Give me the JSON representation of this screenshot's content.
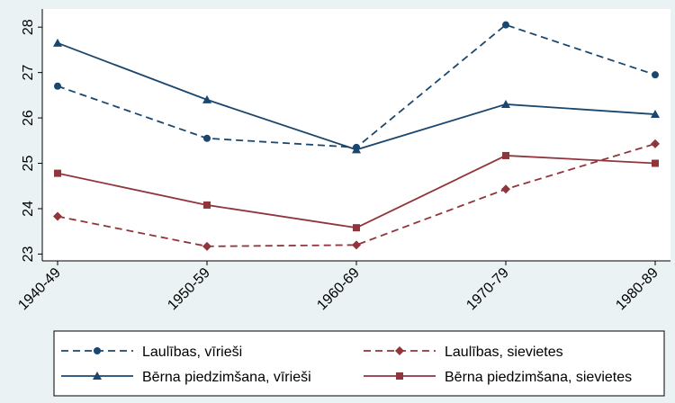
{
  "chart_data": {
    "type": "line",
    "categories": [
      "1940-49",
      "1950-59",
      "1960-69",
      "1970-79",
      "1980-89"
    ],
    "series": [
      {
        "name": "Laulības, vīrieši",
        "color": "#1a476f",
        "dash": true,
        "marker": "circle",
        "values": [
          26.7,
          25.55,
          25.35,
          28.05,
          26.95
        ]
      },
      {
        "name": "Laulības, sievietes",
        "color": "#90353b",
        "dash": true,
        "marker": "diamond",
        "values": [
          23.83,
          23.17,
          23.2,
          24.43,
          25.43
        ]
      },
      {
        "name": "Bērna piedzimšana, vīrieši",
        "color": "#1a476f",
        "dash": false,
        "marker": "triangle",
        "values": [
          27.65,
          26.4,
          25.3,
          26.3,
          26.08
        ]
      },
      {
        "name": "Bērna piedzimšana, sievietes",
        "color": "#90353b",
        "dash": false,
        "marker": "square",
        "values": [
          24.78,
          24.08,
          23.58,
          25.17,
          25.0
        ]
      }
    ],
    "ylim": [
      22.85,
      28.4
    ],
    "yticks": [
      23,
      24,
      25,
      26,
      27,
      28
    ],
    "grid": false
  }
}
